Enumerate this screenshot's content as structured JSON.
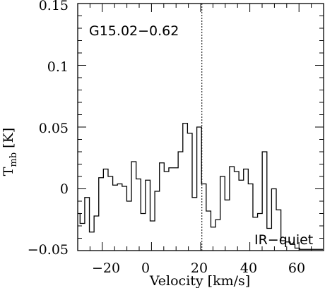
{
  "chart_data": {
    "type": "line",
    "step": true,
    "title": "",
    "xlabel": "Velocity [km/s]",
    "ylabel_main": "T",
    "ylabel_sub": "mb",
    "ylabel_unit": "[K]",
    "xlim": [
      -30,
      70
    ],
    "ylim": [
      -0.05,
      0.15
    ],
    "xticks_major": [
      -20,
      0,
      20,
      40,
      60
    ],
    "xtick_labels": [
      "−20",
      "0",
      "20",
      "40",
      "60"
    ],
    "yticks_major": [
      -0.05,
      0,
      0.05,
      0.1,
      0.15
    ],
    "ytick_labels": [
      "−0.05",
      "0",
      "0.05",
      "0.1",
      "0.15"
    ],
    "grid": false,
    "vline_x": 20.5,
    "annotations": {
      "source_label": "G15.02−0.62",
      "ir_label": "IR−quiet"
    },
    "series": [
      {
        "x": [
          -30,
          -28.1,
          -26.2,
          -24.3,
          -22.4,
          -20.5,
          -18.6,
          -16.7,
          -14.8,
          -12.9,
          -11.0,
          -9.1,
          -7.2,
          -5.3,
          -3.4,
          -1.5,
          0.4,
          2.3,
          4.2,
          6.1,
          8.0,
          9.9,
          11.8,
          13.7,
          15.6,
          17.5,
          19.4,
          21.3,
          23.2,
          25.1,
          27.0,
          28.9,
          30.8,
          32.7,
          34.6,
          36.5,
          38.4,
          40.3,
          42.2,
          44.1,
          46.0,
          47.9,
          49.8,
          51.7,
          53.6,
          55.5,
          57.4,
          59.3,
          61.2,
          63.1,
          65.0,
          66.9,
          68.8
        ],
        "values": [
          -0.02,
          -0.028,
          -0.007,
          -0.035,
          -0.022,
          0.009,
          0.016,
          0.01,
          0.003,
          0.004,
          0.002,
          -0.01,
          0.022,
          0.008,
          -0.02,
          0.007,
          -0.026,
          -0.002,
          0.021,
          0.014,
          0.017,
          0.017,
          0.03,
          0.053,
          0.045,
          -0.007,
          0.05,
          0.004,
          -0.018,
          -0.031,
          -0.025,
          0.01,
          -0.009,
          0.018,
          0.014,
          0.007,
          0.016,
          0.004,
          -0.023,
          -0.02,
          0.03,
          -0.032,
          0.0,
          -0.017,
          -0.042,
          -0.043,
          -0.045,
          -0.048,
          -0.049,
          -0.049,
          -0.049,
          -0.049,
          -0.049
        ]
      }
    ]
  }
}
